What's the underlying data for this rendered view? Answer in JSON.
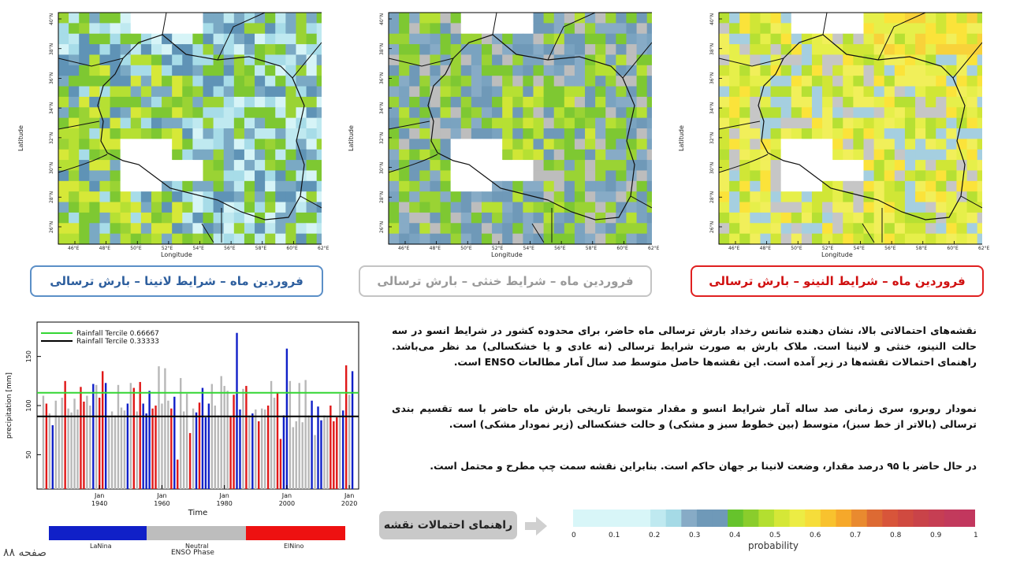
{
  "maps": [
    {
      "id": "lanina",
      "title": "فروردین ماه – شرایط لانینا – بارش ترسالی",
      "border": "#5b8fc7",
      "text_color": "#2e5f9e",
      "palette": [
        "#d6f4f7",
        "#bfe9f0",
        "#a7dce8",
        "#7aa9c4",
        "#5f93b6",
        "#7ec832",
        "#9ad334",
        "#b6e033",
        "#d6e838"
      ]
    },
    {
      "id": "neutral",
      "title": "فروردین ماه – شرایط خنثی – بارش ترسالی",
      "border": "#bdbdbd",
      "text_color": "#9a9a9a",
      "palette": [
        "#6f99b8",
        "#7aa3c0",
        "#87abc6",
        "#6f99b8",
        "#bdbdbd",
        "#7ec832",
        "#9ad334",
        "#b6e033",
        "#d0e636"
      ]
    },
    {
      "id": "elnino",
      "title": "فروردین ماه – شرایط النینو – بارش ترسالی",
      "border": "#e02020",
      "text_color": "#d01010",
      "palette": [
        "#bdbdbd",
        "#c6c6c6",
        "#a5cfe0",
        "#b6e033",
        "#d0e636",
        "#e6ef4a",
        "#f1ef5a",
        "#fbe33a",
        "#f8d23a"
      ]
    }
  ],
  "map_axes": {
    "xlabel": "Longitude",
    "ylabel": "Latitude",
    "xticks": [
      "46°E",
      "48°E",
      "50°E",
      "52°E",
      "54°E",
      "56°E",
      "58°E",
      "60°E",
      "62°E"
    ],
    "yticks": [
      "40°N",
      "38°N",
      "36°N",
      "34°N",
      "32°N",
      "30°N",
      "28°N",
      "26°N"
    ]
  },
  "paragraphs": {
    "p1": "نقشه‌های احتمالاتی بالا، نشان دهنده شانس رخداد بارش ترسالی ماه حاضر، برای محدوده کشور در شرایط انسو در سه حالت النینو، خنثی و لانینا است. ملاک بارش به صورت شرایط ترسالی (نه عادی و یا خشکسالی) مد نظر می‌باشد. راهنمای احتمالات تقشه‌ها در زیر آمده است. این نقشه‌ها حاصل متوسط صد سال آمار مطالعات ENSO است.",
    "p2": "نمودار روبرو، سری زمانی صد ساله آمار شرایط انسو و مقدار متوسط تاریخی بارش ماه حاضر با سه تقسیم بندی ترسالی (بالاتر از خط سبز)، متوسط (بین خطوط سبز و مشکی) و حالت خشکسالی (زیر نمودار مشکی) است.",
    "p3": "در حال حاضر با ۹۵ درصد مقدار، وضعت لانینا بر جهان حاکم است. بنابراین نقشه سمت چپ مطرح و محتمل است."
  },
  "guide_button": "راهنمای احتمالات نقشه",
  "page_number": "صفحه ۸۸",
  "chart_data": {
    "type": "bar",
    "xlabel": "Time",
    "ylabel": "precipitation [mm]",
    "yticks": [
      "50",
      "100",
      "150"
    ],
    "xticks": [
      "Jan\n1940",
      "Jan\n1960",
      "Jan\n1980",
      "Jan\n2000",
      "Jan\n2020"
    ],
    "xtick_labels": [
      {
        "month": "Jan",
        "year": "1940"
      },
      {
        "month": "Jan",
        "year": "1960"
      },
      {
        "month": "Jan",
        "year": "1980"
      },
      {
        "month": "Jan",
        "year": "2000"
      },
      {
        "month": "Jan",
        "year": "2020"
      }
    ],
    "ylim": [
      15,
      185
    ],
    "xlim": [
      1920,
      2023
    ],
    "lines": [
      {
        "name": "Rainfall Tercile 0.66667",
        "value": 113,
        "color": "#33d633"
      },
      {
        "name": "Rainfall Tercile 0.33333",
        "value": 89,
        "color": "#000000"
      }
    ],
    "phase_colors": {
      "lanina": "#1020c8",
      "neutral": "#b8b8b8",
      "elnino": "#e01818"
    },
    "bars": [
      {
        "x": 1922,
        "v": 110,
        "p": "neutral"
      },
      {
        "x": 1923,
        "v": 102,
        "p": "elnino"
      },
      {
        "x": 1924,
        "v": 92,
        "p": "neutral"
      },
      {
        "x": 1925,
        "v": 80,
        "p": "lanina"
      },
      {
        "x": 1926,
        "v": 105,
        "p": "neutral"
      },
      {
        "x": 1927,
        "v": 88,
        "p": "neutral"
      },
      {
        "x": 1928,
        "v": 108,
        "p": "neutral"
      },
      {
        "x": 1929,
        "v": 125,
        "p": "elnino"
      },
      {
        "x": 1930,
        "v": 97,
        "p": "neutral"
      },
      {
        "x": 1931,
        "v": 93,
        "p": "neutral"
      },
      {
        "x": 1932,
        "v": 107,
        "p": "neutral"
      },
      {
        "x": 1933,
        "v": 96,
        "p": "neutral"
      },
      {
        "x": 1934,
        "v": 119,
        "p": "elnino"
      },
      {
        "x": 1935,
        "v": 104,
        "p": "elnino"
      },
      {
        "x": 1936,
        "v": 110,
        "p": "neutral"
      },
      {
        "x": 1937,
        "v": 100,
        "p": "neutral"
      },
      {
        "x": 1938,
        "v": 122,
        "p": "lanina"
      },
      {
        "x": 1939,
        "v": 121,
        "p": "neutral"
      },
      {
        "x": 1940,
        "v": 108,
        "p": "elnino"
      },
      {
        "x": 1941,
        "v": 135,
        "p": "elnino"
      },
      {
        "x": 1942,
        "v": 123,
        "p": "lanina"
      },
      {
        "x": 1943,
        "v": 88,
        "p": "neutral"
      },
      {
        "x": 1944,
        "v": 94,
        "p": "neutral"
      },
      {
        "x": 1945,
        "v": 90,
        "p": "neutral"
      },
      {
        "x": 1946,
        "v": 121,
        "p": "neutral"
      },
      {
        "x": 1947,
        "v": 98,
        "p": "neutral"
      },
      {
        "x": 1948,
        "v": 95,
        "p": "neutral"
      },
      {
        "x": 1949,
        "v": 102,
        "p": "lanina"
      },
      {
        "x": 1950,
        "v": 123,
        "p": "neutral"
      },
      {
        "x": 1951,
        "v": 118,
        "p": "elnino"
      },
      {
        "x": 1952,
        "v": 94,
        "p": "neutral"
      },
      {
        "x": 1953,
        "v": 124,
        "p": "elnino"
      },
      {
        "x": 1954,
        "v": 102,
        "p": "lanina"
      },
      {
        "x": 1955,
        "v": 92,
        "p": "lanina"
      },
      {
        "x": 1956,
        "v": 115,
        "p": "lanina"
      },
      {
        "x": 1957,
        "v": 97,
        "p": "elnino"
      },
      {
        "x": 1958,
        "v": 100,
        "p": "elnino"
      },
      {
        "x": 1959,
        "v": 140,
        "p": "neutral"
      },
      {
        "x": 1960,
        "v": 102,
        "p": "neutral"
      },
      {
        "x": 1961,
        "v": 138,
        "p": "neutral"
      },
      {
        "x": 1962,
        "v": 105,
        "p": "neutral"
      },
      {
        "x": 1963,
        "v": 97,
        "p": "elnino"
      },
      {
        "x": 1964,
        "v": 109,
        "p": "lanina"
      },
      {
        "x": 1965,
        "v": 45,
        "p": "elnino"
      },
      {
        "x": 1966,
        "v": 128,
        "p": "neutral"
      },
      {
        "x": 1967,
        "v": 94,
        "p": "neutral"
      },
      {
        "x": 1968,
        "v": 112,
        "p": "neutral"
      },
      {
        "x": 1969,
        "v": 72,
        "p": "elnino"
      },
      {
        "x": 1970,
        "v": 97,
        "p": "neutral"
      },
      {
        "x": 1971,
        "v": 93,
        "p": "lanina"
      },
      {
        "x": 1972,
        "v": 103,
        "p": "elnino"
      },
      {
        "x": 1973,
        "v": 118,
        "p": "lanina"
      },
      {
        "x": 1974,
        "v": 88,
        "p": "lanina"
      },
      {
        "x": 1975,
        "v": 102,
        "p": "lanina"
      },
      {
        "x": 1976,
        "v": 122,
        "p": "neutral"
      },
      {
        "x": 1977,
        "v": 100,
        "p": "neutral"
      },
      {
        "x": 1978,
        "v": 90,
        "p": "neutral"
      },
      {
        "x": 1979,
        "v": 130,
        "p": "neutral"
      },
      {
        "x": 1980,
        "v": 120,
        "p": "neutral"
      },
      {
        "x": 1981,
        "v": 115,
        "p": "neutral"
      },
      {
        "x": 1982,
        "v": 89,
        "p": "elnino"
      },
      {
        "x": 1983,
        "v": 111,
        "p": "elnino"
      },
      {
        "x": 1984,
        "v": 174,
        "p": "lanina"
      },
      {
        "x": 1985,
        "v": 96,
        "p": "lanina"
      },
      {
        "x": 1986,
        "v": 117,
        "p": "neutral"
      },
      {
        "x": 1987,
        "v": 120,
        "p": "elnino"
      },
      {
        "x": 1988,
        "v": 90,
        "p": "neutral"
      },
      {
        "x": 1989,
        "v": 92,
        "p": "lanina"
      },
      {
        "x": 1990,
        "v": 96,
        "p": "neutral"
      },
      {
        "x": 1991,
        "v": 84,
        "p": "elnino"
      },
      {
        "x": 1992,
        "v": 97,
        "p": "neutral"
      },
      {
        "x": 1993,
        "v": 96,
        "p": "neutral"
      },
      {
        "x": 1994,
        "v": 100,
        "p": "elnino"
      },
      {
        "x": 1995,
        "v": 125,
        "p": "neutral"
      },
      {
        "x": 1996,
        "v": 108,
        "p": "neutral"
      },
      {
        "x": 1997,
        "v": 113,
        "p": "elnino"
      },
      {
        "x": 1998,
        "v": 66,
        "p": "elnino"
      },
      {
        "x": 1999,
        "v": 90,
        "p": "lanina"
      },
      {
        "x": 2000,
        "v": 158,
        "p": "lanina"
      },
      {
        "x": 2001,
        "v": 125,
        "p": "neutral"
      },
      {
        "x": 2002,
        "v": 78,
        "p": "neutral"
      },
      {
        "x": 2003,
        "v": 84,
        "p": "neutral"
      },
      {
        "x": 2004,
        "v": 123,
        "p": "neutral"
      },
      {
        "x": 2005,
        "v": 83,
        "p": "neutral"
      },
      {
        "x": 2006,
        "v": 126,
        "p": "neutral"
      },
      {
        "x": 2007,
        "v": 90,
        "p": "neutral"
      },
      {
        "x": 2008,
        "v": 105,
        "p": "lanina"
      },
      {
        "x": 2009,
        "v": 70,
        "p": "neutral"
      },
      {
        "x": 2010,
        "v": 99,
        "p": "lanina"
      },
      {
        "x": 2011,
        "v": 85,
        "p": "lanina"
      },
      {
        "x": 2012,
        "v": 90,
        "p": "neutral"
      },
      {
        "x": 2013,
        "v": 88,
        "p": "neutral"
      },
      {
        "x": 2014,
        "v": 100,
        "p": "elnino"
      },
      {
        "x": 2015,
        "v": 84,
        "p": "elnino"
      },
      {
        "x": 2016,
        "v": 88,
        "p": "elnino"
      },
      {
        "x": 2017,
        "v": 112,
        "p": "neutral"
      },
      {
        "x": 2018,
        "v": 95,
        "p": "lanina"
      },
      {
        "x": 2019,
        "v": 141,
        "p": "elnino"
      },
      {
        "x": 2020,
        "v": 111,
        "p": "neutral"
      },
      {
        "x": 2021,
        "v": 135,
        "p": "lanina"
      }
    ]
  },
  "enso_bar": {
    "labels": [
      "LaNina",
      "Neutral",
      "ElNino"
    ],
    "title": "ENSO Phase",
    "colors": [
      "#1020c8",
      "#bdbdbd",
      "#ee1111"
    ]
  },
  "prob_bar": {
    "title": "probability",
    "ticks": [
      "0",
      "0.1",
      "0.2",
      "0.3",
      "0.4",
      "0.5",
      "0.6",
      "0.7",
      "0.8",
      "0.9",
      "1"
    ],
    "colors": [
      "#d8f6f8",
      "#d8f6f8",
      "#d8f6f8",
      "#d8f6f8",
      "#d8f6f8",
      "#bfe9f0",
      "#a5dae6",
      "#87abc6",
      "#6f99b8",
      "#6f99b8",
      "#66c32c",
      "#8acd2c",
      "#b3df30",
      "#d5e737",
      "#ecec44",
      "#f6dd3a",
      "#f8c22e",
      "#f6a82a",
      "#e98a2f",
      "#dd6a33",
      "#d8553a",
      "#d04a40",
      "#c94349",
      "#c63e53",
      "#c23a5c",
      "#c2375e"
    ]
  }
}
